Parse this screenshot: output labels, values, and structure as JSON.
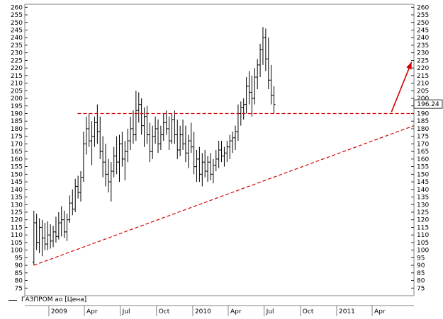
{
  "chart_data": {
    "type": "ohlc",
    "title": "",
    "legend": {
      "label": "ГАЗПРОМ ао [Цена]",
      "placement": "bottom-left"
    },
    "colors": {
      "bars": "#000000",
      "support": "#d00000",
      "arrow": "#d00000",
      "frame": "#808080",
      "grid": "#c0c0c0",
      "price_box": "#ffffff"
    },
    "ylim": [
      70,
      262
    ],
    "ytick_start": 75,
    "ytick_end": 260,
    "ytick_step": 5,
    "x_range": [
      "2008-11-01",
      "2011-07-16"
    ],
    "x_ticks": [
      {
        "date": "2009-01-01",
        "label": "2009"
      },
      {
        "date": "2009-04-01",
        "label": "Apr"
      },
      {
        "date": "2009-07-01",
        "label": "Jul"
      },
      {
        "date": "2009-10-01",
        "label": "Oct"
      },
      {
        "date": "2010-01-01",
        "label": "2010"
      },
      {
        "date": "2010-04-01",
        "label": "Apr"
      },
      {
        "date": "2010-07-01",
        "label": "Jul"
      },
      {
        "date": "2010-10-01",
        "label": "Oct"
      },
      {
        "date": "2011-01-01",
        "label": "2011"
      },
      {
        "date": "2011-04-01",
        "label": "Apr"
      }
    ],
    "last_price_label": "196.24",
    "last_price": 196.24,
    "resistance": {
      "value": 190,
      "from": "2009-03-15",
      "to": "2011-07-16",
      "style": "dashed"
    },
    "support": {
      "from": [
        "2008-11-24",
        90
      ],
      "to": [
        "2011-07-16",
        182
      ],
      "style": "dashed"
    },
    "projection_arrow": {
      "from": [
        "2011-05-20",
        191
      ],
      "to": [
        "2011-07-10",
        224
      ]
    },
    "ohlc_weekly_start": "2008-11-24",
    "ohlc": [
      [
        92,
        126,
        90,
        118
      ],
      [
        118,
        124,
        100,
        105
      ],
      [
        105,
        121,
        98,
        115
      ],
      [
        115,
        120,
        96,
        108
      ],
      [
        108,
        118,
        100,
        104
      ],
      [
        104,
        119,
        100,
        110
      ],
      [
        110,
        117,
        101,
        106
      ],
      [
        106,
        116,
        102,
        112
      ],
      [
        112,
        122,
        105,
        109
      ],
      [
        109,
        125,
        107,
        118
      ],
      [
        118,
        129,
        109,
        120
      ],
      [
        120,
        126,
        108,
        112
      ],
      [
        112,
        124,
        106,
        120
      ],
      [
        120,
        136,
        118,
        131
      ],
      [
        131,
        140,
        123,
        127
      ],
      [
        127,
        147,
        125,
        142
      ],
      [
        142,
        149,
        134,
        138
      ],
      [
        138,
        152,
        132,
        148
      ],
      [
        148,
        178,
        145,
        170
      ],
      [
        170,
        188,
        163,
        180
      ],
      [
        180,
        190,
        168,
        172
      ],
      [
        172,
        185,
        156,
        175
      ],
      [
        175,
        188,
        168,
        184
      ],
      [
        184,
        196,
        170,
        178
      ],
      [
        178,
        188,
        160,
        165
      ],
      [
        165,
        175,
        148,
        158
      ],
      [
        158,
        170,
        142,
        150
      ],
      [
        150,
        160,
        138,
        145
      ],
      [
        145,
        158,
        132,
        152
      ],
      [
        152,
        168,
        148,
        162
      ],
      [
        162,
        175,
        150,
        158
      ],
      [
        158,
        176,
        145,
        170
      ],
      [
        170,
        178,
        155,
        160
      ],
      [
        160,
        172,
        146,
        165
      ],
      [
        165,
        180,
        158,
        172
      ],
      [
        172,
        188,
        166,
        180
      ],
      [
        180,
        192,
        170,
        176
      ],
      [
        176,
        205,
        172,
        192
      ],
      [
        192,
        204,
        184,
        196
      ],
      [
        196,
        200,
        176,
        182
      ],
      [
        182,
        194,
        168,
        188
      ],
      [
        188,
        195,
        170,
        176
      ],
      [
        176,
        184,
        158,
        165
      ],
      [
        165,
        182,
        160,
        175
      ],
      [
        175,
        188,
        170,
        180
      ],
      [
        180,
        186,
        164,
        170
      ],
      [
        170,
        182,
        166,
        176
      ],
      [
        176,
        190,
        172,
        184
      ],
      [
        184,
        192,
        176,
        180
      ],
      [
        180,
        188,
        166,
        172
      ],
      [
        172,
        190,
        170,
        186
      ],
      [
        186,
        192,
        170,
        176
      ],
      [
        176,
        186,
        160,
        166
      ],
      [
        166,
        182,
        162,
        176
      ],
      [
        176,
        186,
        166,
        170
      ],
      [
        170,
        182,
        158,
        164
      ],
      [
        164,
        176,
        154,
        172
      ],
      [
        172,
        184,
        164,
        168
      ],
      [
        168,
        178,
        150,
        155
      ],
      [
        155,
        166,
        145,
        160
      ],
      [
        160,
        168,
        145,
        150
      ],
      [
        150,
        164,
        142,
        158
      ],
      [
        158,
        166,
        148,
        152
      ],
      [
        152,
        162,
        145,
        158
      ],
      [
        158,
        164,
        146,
        150
      ],
      [
        150,
        160,
        144,
        156
      ],
      [
        156,
        166,
        152,
        160
      ],
      [
        160,
        172,
        154,
        166
      ],
      [
        166,
        172,
        158,
        162
      ],
      [
        162,
        168,
        155,
        164
      ],
      [
        164,
        172,
        158,
        168
      ],
      [
        168,
        176,
        160,
        172
      ],
      [
        172,
        178,
        164,
        174
      ],
      [
        174,
        182,
        166,
        178
      ],
      [
        178,
        196,
        172,
        190
      ],
      [
        190,
        198,
        182,
        194
      ],
      [
        194,
        200,
        186,
        196
      ],
      [
        196,
        214,
        190,
        208
      ],
      [
        208,
        218,
        196,
        204
      ],
      [
        204,
        215,
        188,
        200
      ],
      [
        200,
        220,
        196,
        214
      ],
      [
        214,
        226,
        206,
        222
      ],
      [
        222,
        236,
        214,
        232
      ],
      [
        232,
        247,
        222,
        240
      ],
      [
        240,
        246,
        218,
        226
      ],
      [
        226,
        240,
        206,
        212
      ],
      [
        212,
        222,
        196,
        202
      ],
      [
        202,
        208,
        190,
        196
      ]
    ]
  }
}
